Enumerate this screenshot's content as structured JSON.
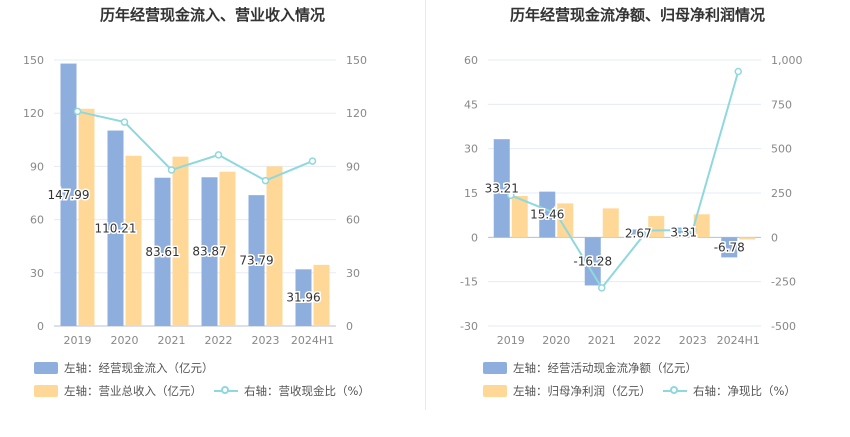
{
  "colors": {
    "bar_blue": "#8eaedd",
    "bar_orange": "#ffd898",
    "line_cyan": "#8fd8de",
    "grid": "#e6ecf5",
    "axis_text": "#888888"
  },
  "left": {
    "title": "历年经营现金流入、营业收入情况",
    "legend": {
      "bar1": "左轴：经营现金流入（亿元）",
      "bar2": "左轴：营业总收入（亿元）",
      "line": "右轴：营收现金比（%）"
    }
  },
  "right": {
    "title": "历年经营现金流净额、归母净利润情况",
    "legend": {
      "bar1": "左轴：经营活动现金流净额（亿元）",
      "bar2": "左轴：归母净利润（亿元）",
      "line": "右轴：净现比（%）"
    }
  },
  "chart_data": [
    {
      "type": "bar",
      "title": "历年经营现金流入、营业收入情况",
      "categories": [
        "2019",
        "2020",
        "2021",
        "2022",
        "2023",
        "2024H1"
      ],
      "series": [
        {
          "name": "左轴：经营现金流入（亿元）",
          "axis": "left",
          "values": [
            147.99,
            110.21,
            83.61,
            83.87,
            73.79,
            31.96
          ],
          "data_labels": [
            "147.99",
            "110.21",
            "83.61",
            "83.87",
            "73.79",
            "31.96"
          ]
        },
        {
          "name": "左轴：营业总收入（亿元）",
          "axis": "left",
          "values": [
            122.5,
            96,
            95.5,
            87,
            90,
            34.5
          ]
        },
        {
          "name": "右轴：营收现金比（%）",
          "axis": "right",
          "type": "line",
          "values": [
            121,
            115,
            88,
            96.5,
            82,
            93
          ]
        }
      ],
      "y_left": {
        "ylim": [
          0,
          150
        ],
        "ticks": [
          "0",
          "30",
          "60",
          "90",
          "120",
          "150"
        ]
      },
      "y_right": {
        "ylim": [
          0,
          150
        ],
        "ticks": [
          "0",
          "30",
          "60",
          "90",
          "120",
          "150"
        ]
      },
      "grid": true,
      "legend_position": "bottom"
    },
    {
      "type": "bar",
      "title": "历年经营现金流净额、归母净利润情况",
      "categories": [
        "2019",
        "2020",
        "2021",
        "2022",
        "2023",
        "2024H1"
      ],
      "series": [
        {
          "name": "左轴：经营活动现金流净额（亿元）",
          "axis": "left",
          "values": [
            33.21,
            15.46,
            -16.28,
            2.67,
            3.31,
            -6.78
          ],
          "data_labels": [
            "33.21",
            "15.46",
            "-16.28",
            "2.67",
            "3.31",
            "-6.78"
          ]
        },
        {
          "name": "左轴：归母净利润（亿元）",
          "axis": "left",
          "values": [
            14,
            11.5,
            9.8,
            7.2,
            7.8,
            -0.7
          ]
        },
        {
          "name": "右轴：净现比（%）",
          "axis": "right",
          "type": "line",
          "values": [
            237,
            134,
            -285,
            38,
            42,
            935
          ]
        }
      ],
      "y_left": {
        "ylim": [
          -30,
          60
        ],
        "ticks": [
          "-30",
          "-15",
          "0",
          "15",
          "30",
          "45",
          "60"
        ]
      },
      "y_right": {
        "ylim": [
          -500,
          1000
        ],
        "ticks": [
          "-500",
          "-250",
          "0",
          "250",
          "500",
          "750",
          "1,000"
        ]
      },
      "grid": true,
      "legend_position": "bottom"
    }
  ]
}
